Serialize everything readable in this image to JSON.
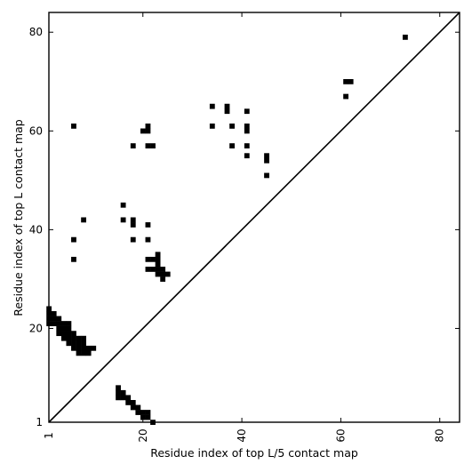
{
  "chart_data": {
    "type": "heatmap",
    "title": "",
    "xlabel": "Residue index of top L/5 contact map",
    "ylabel": "Residue index of top L contact map",
    "xlim": [
      1,
      84
    ],
    "ylim": [
      1,
      84
    ],
    "x_ticks": [
      1,
      20,
      40,
      60,
      80
    ],
    "y_ticks": [
      1,
      20,
      40,
      60,
      80
    ],
    "x_tick_labels": [
      "1",
      "20",
      "40",
      "60",
      "80"
    ],
    "y_tick_labels": [
      "1",
      "20",
      "40",
      "60",
      "80"
    ],
    "diagonal_line": true,
    "grid": false,
    "cell_color": "#000000",
    "background_color": "#ffffff",
    "contacts": [
      [
        1,
        24
      ],
      [
        1,
        23
      ],
      [
        1,
        22
      ],
      [
        1,
        21
      ],
      [
        2,
        23
      ],
      [
        2,
        22
      ],
      [
        2,
        21
      ],
      [
        3,
        22
      ],
      [
        3,
        21
      ],
      [
        3,
        20
      ],
      [
        3,
        19
      ],
      [
        4,
        21
      ],
      [
        4,
        20
      ],
      [
        4,
        19
      ],
      [
        4,
        18
      ],
      [
        5,
        21
      ],
      [
        5,
        20
      ],
      [
        5,
        19
      ],
      [
        5,
        18
      ],
      [
        5,
        17
      ],
      [
        6,
        19
      ],
      [
        6,
        18
      ],
      [
        6,
        17
      ],
      [
        6,
        16
      ],
      [
        7,
        18
      ],
      [
        7,
        17
      ],
      [
        7,
        16
      ],
      [
        7,
        15
      ],
      [
        8,
        18
      ],
      [
        8,
        17
      ],
      [
        8,
        16
      ],
      [
        8,
        15
      ],
      [
        9,
        16
      ],
      [
        9,
        15
      ],
      [
        10,
        16
      ],
      [
        6,
        61
      ],
      [
        6,
        38
      ],
      [
        6,
        34
      ],
      [
        8,
        42
      ],
      [
        15,
        8
      ],
      [
        15,
        7
      ],
      [
        15,
        6
      ],
      [
        16,
        7
      ],
      [
        16,
        6
      ],
      [
        17,
        6
      ],
      [
        17,
        5
      ],
      [
        18,
        5
      ],
      [
        18,
        4
      ],
      [
        19,
        4
      ],
      [
        19,
        3
      ],
      [
        20,
        3
      ],
      [
        20,
        2
      ],
      [
        21,
        3
      ],
      [
        21,
        2
      ],
      [
        22,
        1
      ],
      [
        16,
        45
      ],
      [
        16,
        42
      ],
      [
        18,
        57
      ],
      [
        18,
        42
      ],
      [
        18,
        41
      ],
      [
        18,
        38
      ],
      [
        20,
        60
      ],
      [
        21,
        61
      ],
      [
        21,
        60
      ],
      [
        21,
        57
      ],
      [
        21,
        41
      ],
      [
        21,
        38
      ],
      [
        22,
        57
      ],
      [
        21,
        34
      ],
      [
        21,
        32
      ],
      [
        22,
        34
      ],
      [
        22,
        32
      ],
      [
        23,
        35
      ],
      [
        23,
        34
      ],
      [
        23,
        33
      ],
      [
        23,
        32
      ],
      [
        23,
        31
      ],
      [
        24,
        32
      ],
      [
        24,
        31
      ],
      [
        24,
        30
      ],
      [
        25,
        31
      ],
      [
        34,
        65
      ],
      [
        34,
        61
      ],
      [
        37,
        65
      ],
      [
        37,
        64
      ],
      [
        38,
        61
      ],
      [
        38,
        57
      ],
      [
        41,
        64
      ],
      [
        41,
        61
      ],
      [
        41,
        60
      ],
      [
        41,
        57
      ],
      [
        41,
        55
      ],
      [
        45,
        55
      ],
      [
        45,
        54
      ],
      [
        45,
        51
      ],
      [
        61,
        70
      ],
      [
        61,
        67
      ],
      [
        62,
        70
      ],
      [
        73,
        79
      ]
    ]
  }
}
